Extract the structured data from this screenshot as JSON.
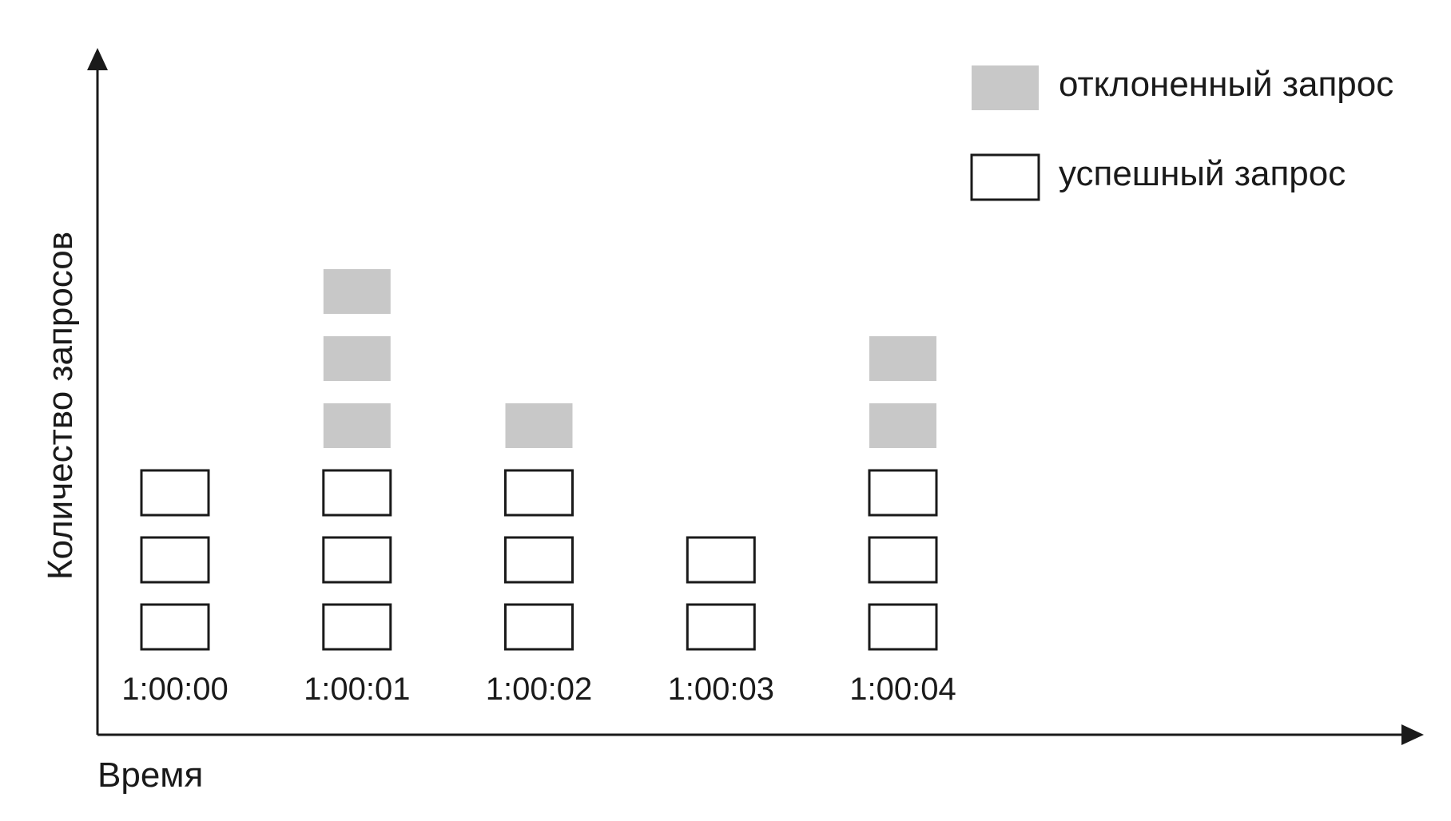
{
  "chart_data": {
    "type": "bar",
    "stacked": true,
    "xlabel": "Время",
    "ylabel": "Количество запросов",
    "categories": [
      "1:00:00",
      "1:00:01",
      "1:00:02",
      "1:00:03",
      "1:00:04"
    ],
    "series": [
      {
        "name": "успешный запрос",
        "values": [
          3,
          3,
          3,
          2,
          3
        ],
        "fill": "#ffffff",
        "stroke": "#1a1a1a"
      },
      {
        "name": "отклоненный запрос",
        "values": [
          0,
          3,
          1,
          0,
          2
        ],
        "fill": "#c8c8c8",
        "stroke": "none"
      }
    ],
    "ylim": [
      0,
      9
    ],
    "grid": false,
    "legend_position": "top-right",
    "legend_order": [
      1,
      0
    ]
  }
}
